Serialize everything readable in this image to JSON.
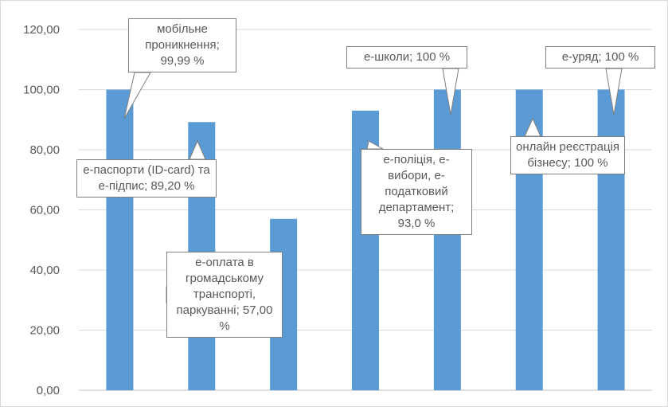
{
  "chart_data": {
    "type": "bar",
    "categories": [
      "",
      "",
      "",
      "",
      "",
      "",
      ""
    ],
    "values": [
      99.99,
      89.2,
      57.0,
      93.0,
      100,
      100,
      100
    ],
    "data_labels": [
      "мобільне проникнення; 99,99 %",
      "е-паспорти (ID-card) та е-підпис; 89,20 %",
      "е-оплата в громадському транспорті, паркуванні; 57,00 %",
      "е-поліція, е-вибори, е-податковий департамент; 93,0 %",
      "е-школи; 100 %",
      "онлайн реєстрація бізнесу; 100 %",
      "е-уряд; 100 %"
    ],
    "y_tick_labels": [
      "0,00",
      "20,00",
      "40,00",
      "60,00",
      "80,00",
      "100,00",
      "120,00"
    ],
    "ylim": [
      0,
      120
    ],
    "ystep": 20,
    "grid": true,
    "legend": "none",
    "title": "",
    "xlabel": "",
    "ylabel": "",
    "colors": {
      "bar": "#5b9bd5",
      "grid": "#d9d9d9",
      "axis": "#bfbfbf",
      "tick_text": "#595959",
      "callout_border": "#7f7f7f"
    }
  }
}
